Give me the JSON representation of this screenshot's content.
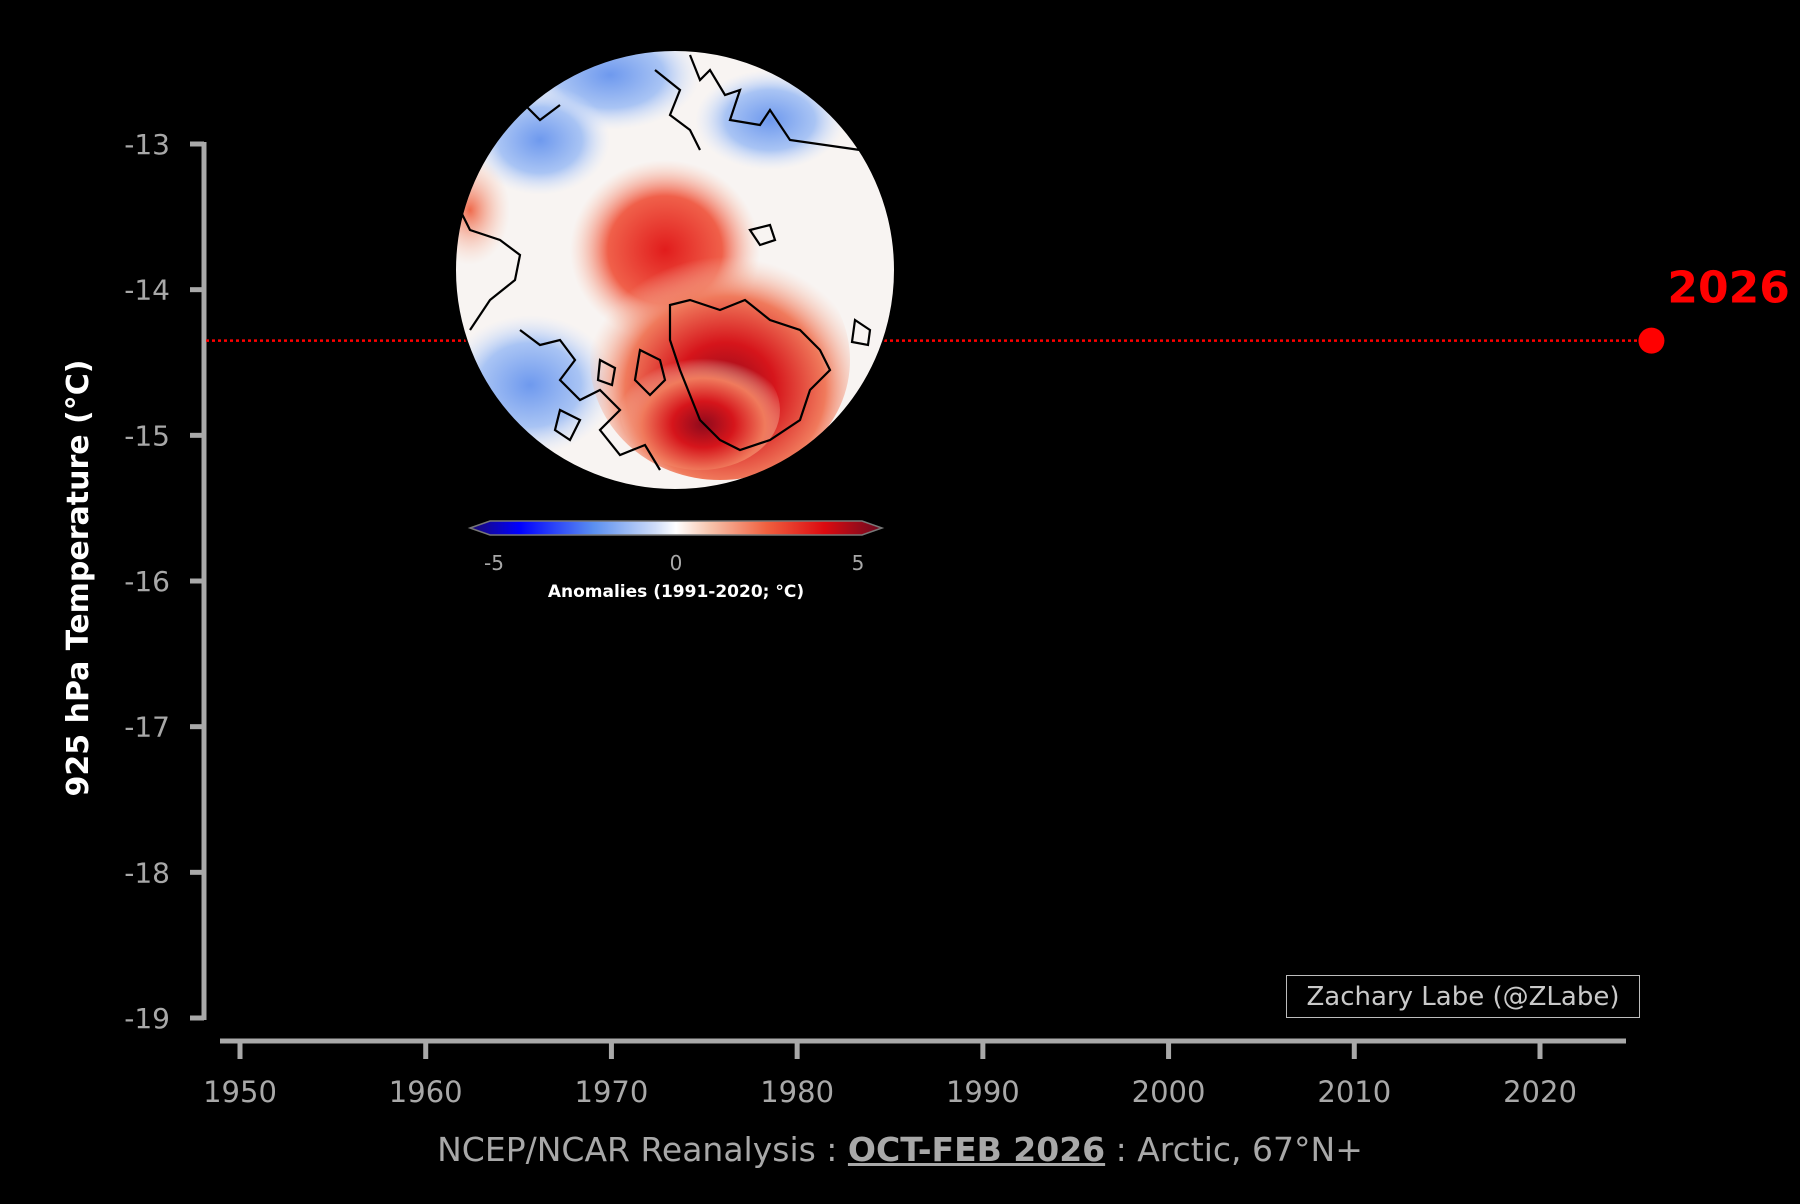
{
  "chart_data": {
    "type": "line",
    "ylabel": "925 hPa Temperature (°C)",
    "ylim": [
      -19,
      -13
    ],
    "xlim": [
      1950,
      2026
    ],
    "x_ticks": [
      "1950",
      "1960",
      "1970",
      "1980",
      "1990",
      "2000",
      "2010",
      "2020"
    ],
    "y_ticks": [
      "-13",
      "-14",
      "-15",
      "-16",
      "-17",
      "-18",
      "-19"
    ],
    "x": [
      2026
    ],
    "y": [
      -14.35
    ],
    "highlight": {
      "label": "2026",
      "year": 2026,
      "value": -14.35
    },
    "line_color": "#ff0000",
    "reference_line": true,
    "inset_map": {
      "region": "Arctic",
      "colorbar": {
        "ticks": [
          "-5",
          "0",
          "5"
        ],
        "label": "Anomalies (1991-2020; °C)",
        "min": -5,
        "max": 5
      }
    }
  },
  "credit": "Zachary Labe (@ZLabe)",
  "footer": {
    "source": "NCEP/NCAR Reanalysis",
    "sep1": " : ",
    "period": "OCT-FEB 2026",
    "sep2": " : ",
    "region": "Arctic, 67°N+"
  },
  "colors": {
    "background": "#000000",
    "axis": "#a9a9a9",
    "highlight": "#ff0000"
  }
}
